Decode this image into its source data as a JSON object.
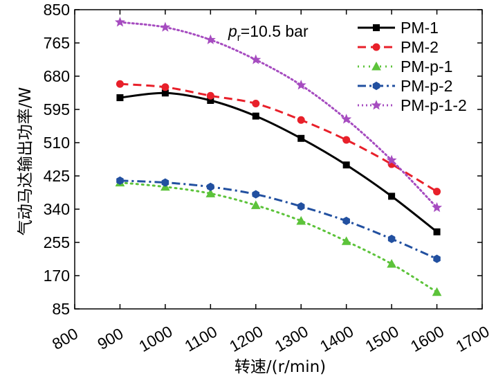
{
  "chart_data": {
    "type": "line",
    "title": "",
    "xlabel": "转速/(r/min)",
    "ylabel": "气动马达输出功率/W",
    "xlim": [
      800,
      1700
    ],
    "ylim": [
      85,
      850
    ],
    "xticks": [
      800,
      900,
      1000,
      1100,
      1200,
      1300,
      1400,
      1500,
      1600,
      1700
    ],
    "yticks": [
      85,
      170,
      255,
      340,
      425,
      510,
      595,
      680,
      765,
      850
    ],
    "grid": false,
    "legend_position": "top-right",
    "annotation": {
      "symbol": "p",
      "subscript": "r",
      "text": "=10.5 bar"
    },
    "series": [
      {
        "name": "PM-1",
        "color": "#000000",
        "marker": "square",
        "line_style": "solid",
        "x": [
          900,
          1000,
          1100,
          1200,
          1300,
          1400,
          1500,
          1600
        ],
        "y": [
          625,
          637,
          618,
          578,
          521,
          453,
          373,
          282
        ]
      },
      {
        "name": "PM-2",
        "color": "#e8202a",
        "marker": "circle",
        "line_style": "dashed",
        "x": [
          900,
          1000,
          1100,
          1200,
          1300,
          1400,
          1500,
          1600
        ],
        "y": [
          660,
          652,
          630,
          610,
          568,
          517,
          455,
          385
        ]
      },
      {
        "name": "PM-p-1",
        "color": "#5cc33a",
        "marker": "triangle",
        "line_style": "dotted",
        "x": [
          900,
          1000,
          1100,
          1200,
          1300,
          1400,
          1500,
          1600
        ],
        "y": [
          408,
          397,
          380,
          350,
          310,
          258,
          200,
          128
        ]
      },
      {
        "name": "PM-p-2",
        "color": "#2250a0",
        "marker": "hexagon",
        "line_style": "dashdot",
        "x": [
          900,
          1000,
          1100,
          1200,
          1300,
          1400,
          1500,
          1600
        ],
        "y": [
          413,
          408,
          397,
          378,
          347,
          310,
          264,
          213
        ]
      },
      {
        "name": "PM-p-1-2",
        "color": "#a64cc0",
        "marker": "star",
        "line_style": "densely-dotted",
        "x": [
          900,
          1000,
          1100,
          1200,
          1300,
          1400,
          1500,
          1600
        ],
        "y": [
          818,
          805,
          773,
          722,
          657,
          570,
          465,
          344
        ]
      }
    ]
  }
}
